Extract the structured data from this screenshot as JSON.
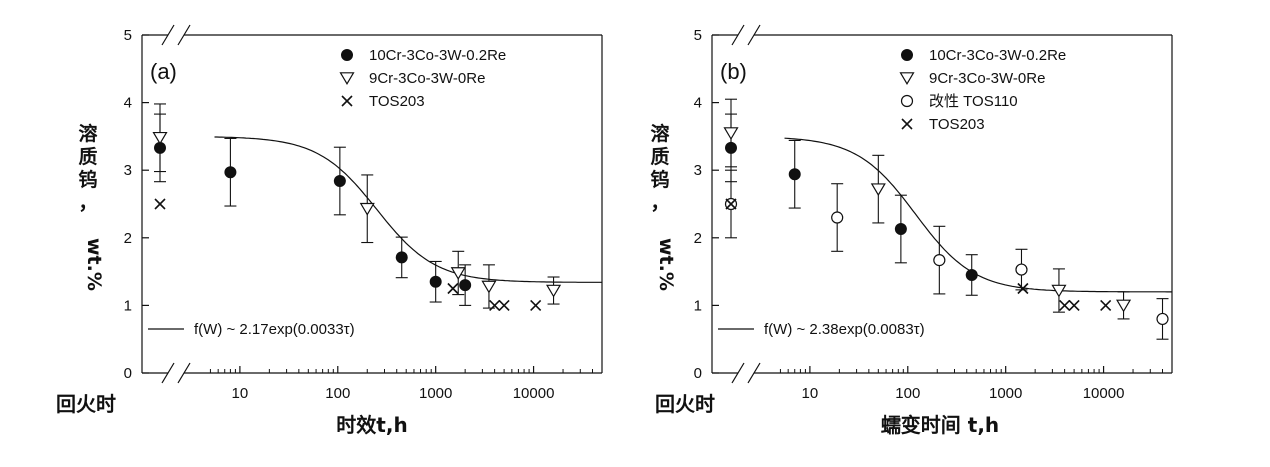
{
  "chart_data": [
    {
      "type": "scatter",
      "panel_label": "(a)",
      "xlabel": "时效t,h",
      "ylabel_lines": [
        "溶",
        "质",
        "钨",
        "，",
        "wt.%"
      ],
      "tempered_label": "回火时",
      "x_scale": "log",
      "xlim": [
        1,
        50000
      ],
      "ylim": [
        0,
        5
      ],
      "x_ticks": [
        "10",
        "100",
        "1000",
        "10000"
      ],
      "x_tick_values": [
        10,
        100,
        1000,
        10000
      ],
      "y_ticks": [
        "0",
        "1",
        "2",
        "3",
        "4",
        "5"
      ],
      "legend_position": "top-right",
      "grid": false,
      "series": [
        {
          "name": "10Cr-3Co-3W-0.2Re",
          "marker": "filled-circle",
          "points": [
            {
              "x": "tempered",
              "y": 3.33,
              "err": 0.5
            },
            {
              "x": 8,
              "y": 2.97,
              "err": 0.5
            },
            {
              "x": 105,
              "y": 2.84,
              "err": 0.5
            },
            {
              "x": 450,
              "y": 1.71,
              "err": 0.3
            },
            {
              "x": 1000,
              "y": 1.35,
              "err": 0.3
            },
            {
              "x": 2000,
              "y": 1.3,
              "err": 0.3
            }
          ]
        },
        {
          "name": "9Cr-3Co-3W-0Re",
          "marker": "open-triangle-down",
          "points": [
            {
              "x": "tempered",
              "y": 3.48,
              "err": 0.5
            },
            {
              "x": 200,
              "y": 2.43,
              "err": 0.5
            },
            {
              "x": 1700,
              "y": 1.48,
              "err": 0.32
            },
            {
              "x": 3500,
              "y": 1.28,
              "err": 0.32
            },
            {
              "x": 16000,
              "y": 1.22,
              "err": 0.2
            }
          ]
        },
        {
          "name": "TOS203",
          "marker": "x",
          "points": [
            {
              "x": "tempered",
              "y": 2.5
            },
            {
              "x": 1500,
              "y": 1.25
            },
            {
              "x": 4000,
              "y": 1.0
            },
            {
              "x": 5000,
              "y": 1.0
            },
            {
              "x": 10500,
              "y": 1.0
            }
          ]
        }
      ],
      "fit": {
        "legend_name": "f(W) ~ 2.17exp(0.0033τ)",
        "upper": 3.5,
        "lower": 1.34,
        "midpoint_x": 250,
        "width_decades": 0.3
      }
    },
    {
      "type": "scatter",
      "panel_label": "(b)",
      "xlabel": "蠕变时间 t,h",
      "ylabel_lines": [
        "溶",
        "质",
        "钨",
        "，",
        "wt.%"
      ],
      "tempered_label": "回火时",
      "x_scale": "log",
      "xlim": [
        1,
        50000
      ],
      "ylim": [
        0,
        5
      ],
      "x_ticks": [
        "10",
        "100",
        "1000",
        "10000"
      ],
      "x_tick_values": [
        10,
        100,
        1000,
        10000
      ],
      "y_ticks": [
        "0",
        "1",
        "2",
        "3",
        "4",
        "5"
      ],
      "legend_position": "top-right",
      "grid": false,
      "series": [
        {
          "name": "10Cr-3Co-3W-0.2Re",
          "marker": "filled-circle",
          "points": [
            {
              "x": "tempered",
              "y": 3.33,
              "err": 0.5
            },
            {
              "x": 7,
              "y": 2.94,
              "err": 0.5
            },
            {
              "x": 85,
              "y": 2.13,
              "err": 0.5
            },
            {
              "x": 450,
              "y": 1.45,
              "err": 0.3
            }
          ]
        },
        {
          "name": "9Cr-3Co-3W-0Re",
          "marker": "open-triangle-down",
          "points": [
            {
              "x": "tempered",
              "y": 3.55,
              "err": 0.5
            },
            {
              "x": 50,
              "y": 2.72,
              "err": 0.5
            },
            {
              "x": 3500,
              "y": 1.22,
              "err": 0.32
            },
            {
              "x": 16000,
              "y": 1.0,
              "err": 0.2
            }
          ]
        },
        {
          "name": "改性 TOS110",
          "marker": "open-circle",
          "points": [
            {
              "x": "tempered",
              "y": 2.5,
              "err": 0.5
            },
            {
              "x": 19,
              "y": 2.3,
              "err": 0.5
            },
            {
              "x": 210,
              "y": 1.67,
              "err": 0.5
            },
            {
              "x": 1450,
              "y": 1.53,
              "err": 0.3
            },
            {
              "x": 40000,
              "y": 0.8,
              "err": 0.3
            }
          ]
        },
        {
          "name": "TOS203",
          "marker": "x",
          "points": [
            {
              "x": "tempered",
              "y": 2.5
            },
            {
              "x": 1500,
              "y": 1.25
            },
            {
              "x": 4000,
              "y": 1.0
            },
            {
              "x": 5000,
              "y": 1.0
            },
            {
              "x": 10500,
              "y": 1.0
            }
          ]
        }
      ],
      "fit": {
        "legend_name": "f(W) ~ 2.38exp(0.0083τ)",
        "upper": 3.5,
        "lower": 1.2,
        "midpoint_x": 120,
        "width_decades": 0.3
      }
    }
  ]
}
